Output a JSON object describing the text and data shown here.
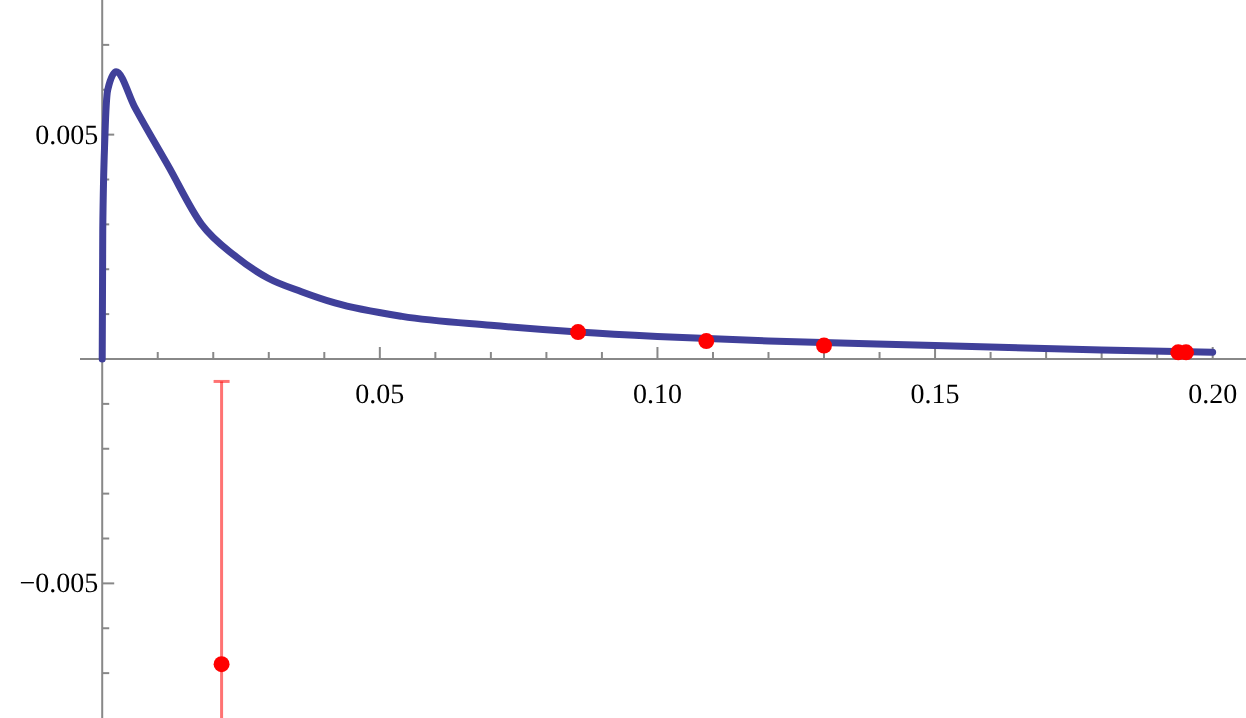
{
  "chart_data": {
    "type": "line",
    "xlim": [
      -0.004,
      0.206
    ],
    "ylim": [
      -0.008,
      0.008
    ],
    "xticks": [
      {
        "value": 0.01,
        "label": null
      },
      {
        "value": 0.02,
        "label": null
      },
      {
        "value": 0.03,
        "label": null
      },
      {
        "value": 0.04,
        "label": null
      },
      0.05,
      {
        "value": 0.06,
        "label": null
      },
      {
        "value": 0.07,
        "label": null
      },
      {
        "value": 0.08,
        "label": null
      },
      {
        "value": 0.09,
        "label": null
      },
      {
        "value": 0.1,
        "label": "0.10"
      },
      {
        "value": 0.11,
        "label": null
      },
      {
        "value": 0.12,
        "label": null
      },
      {
        "value": 0.13,
        "label": null
      },
      {
        "value": 0.14,
        "label": null
      },
      {
        "value": 0.15,
        "label": "0.15"
      },
      {
        "value": 0.16,
        "label": null
      },
      {
        "value": 0.17,
        "label": null
      },
      {
        "value": 0.18,
        "label": null
      },
      {
        "value": 0.19,
        "label": null
      },
      {
        "value": 0.2,
        "label": "0.20"
      }
    ],
    "yticks": [
      {
        "value": -0.007,
        "label": null
      },
      {
        "value": -0.006,
        "label": null
      },
      -0.005,
      {
        "value": -0.004,
        "label": null
      },
      {
        "value": -0.003,
        "label": null
      },
      {
        "value": -0.002,
        "label": null
      },
      {
        "value": -0.001,
        "label": null
      },
      {
        "value": 0.001,
        "label": null
      },
      {
        "value": 0.002,
        "label": null
      },
      {
        "value": 0.003,
        "label": null
      },
      {
        "value": 0.004,
        "label": null
      },
      0.005,
      {
        "value": 0.006,
        "label": null
      },
      {
        "value": 0.007,
        "label": null
      }
    ],
    "grid": false,
    "series": [
      {
        "color": "#40409a",
        "marker": "none",
        "line_style": "solid",
        "x": [
          0,
          0.0001,
          0.0005,
          0.001,
          0.0025,
          0.0059,
          0.0119,
          0.0179,
          0.0239,
          0.0299,
          0.0359,
          0.0419,
          0.054,
          0.07,
          0.0857,
          0.1,
          0.12,
          0.15,
          0.18,
          0.2
        ],
        "values": [
          0,
          0.0029,
          0.005,
          0.006,
          0.0064,
          0.0056,
          0.0043,
          0.003,
          0.0023,
          0.0018,
          0.0015,
          0.00125,
          0.00095,
          0.00075,
          0.0006,
          0.0005,
          0.0004,
          0.0003,
          0.0002,
          0.00015
        ]
      },
      {
        "type": "scatter",
        "color": "#ff0000",
        "marker": "circle",
        "x": [
          0.0215,
          0.0857,
          0.1088,
          0.13,
          0.1938,
          0.1952
        ],
        "values": [
          -0.0068,
          0.0006,
          0.0004,
          0.0003,
          0.00015,
          0.00015
        ],
        "errors": [
          [
            -0.008,
            -0.0005
          ],
          null,
          null,
          null,
          null,
          null
        ]
      }
    ]
  }
}
